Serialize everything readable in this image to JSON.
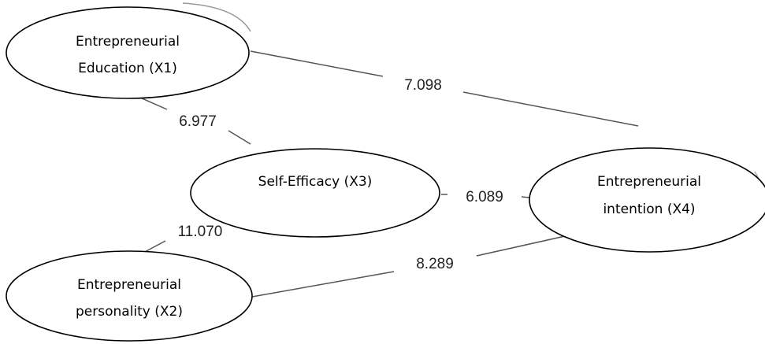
{
  "diagram": {
    "nodes": {
      "education": {
        "line1": "Entrepreneurial",
        "line2": "Education (X1)"
      },
      "personality": {
        "line1": "Entrepreneurial",
        "line2": "personality (X2)"
      },
      "efficacy": {
        "line1": "Self-Efficacy (X3)"
      },
      "intention": {
        "line1": "Entrepreneurial",
        "line2": "intention (X4)"
      }
    },
    "edges": {
      "x1_x4": "7.098",
      "x1_x3": "6.977",
      "x3_x4": "6.089",
      "x2_x3": "11.070",
      "x2_x4": "8.289"
    }
  }
}
